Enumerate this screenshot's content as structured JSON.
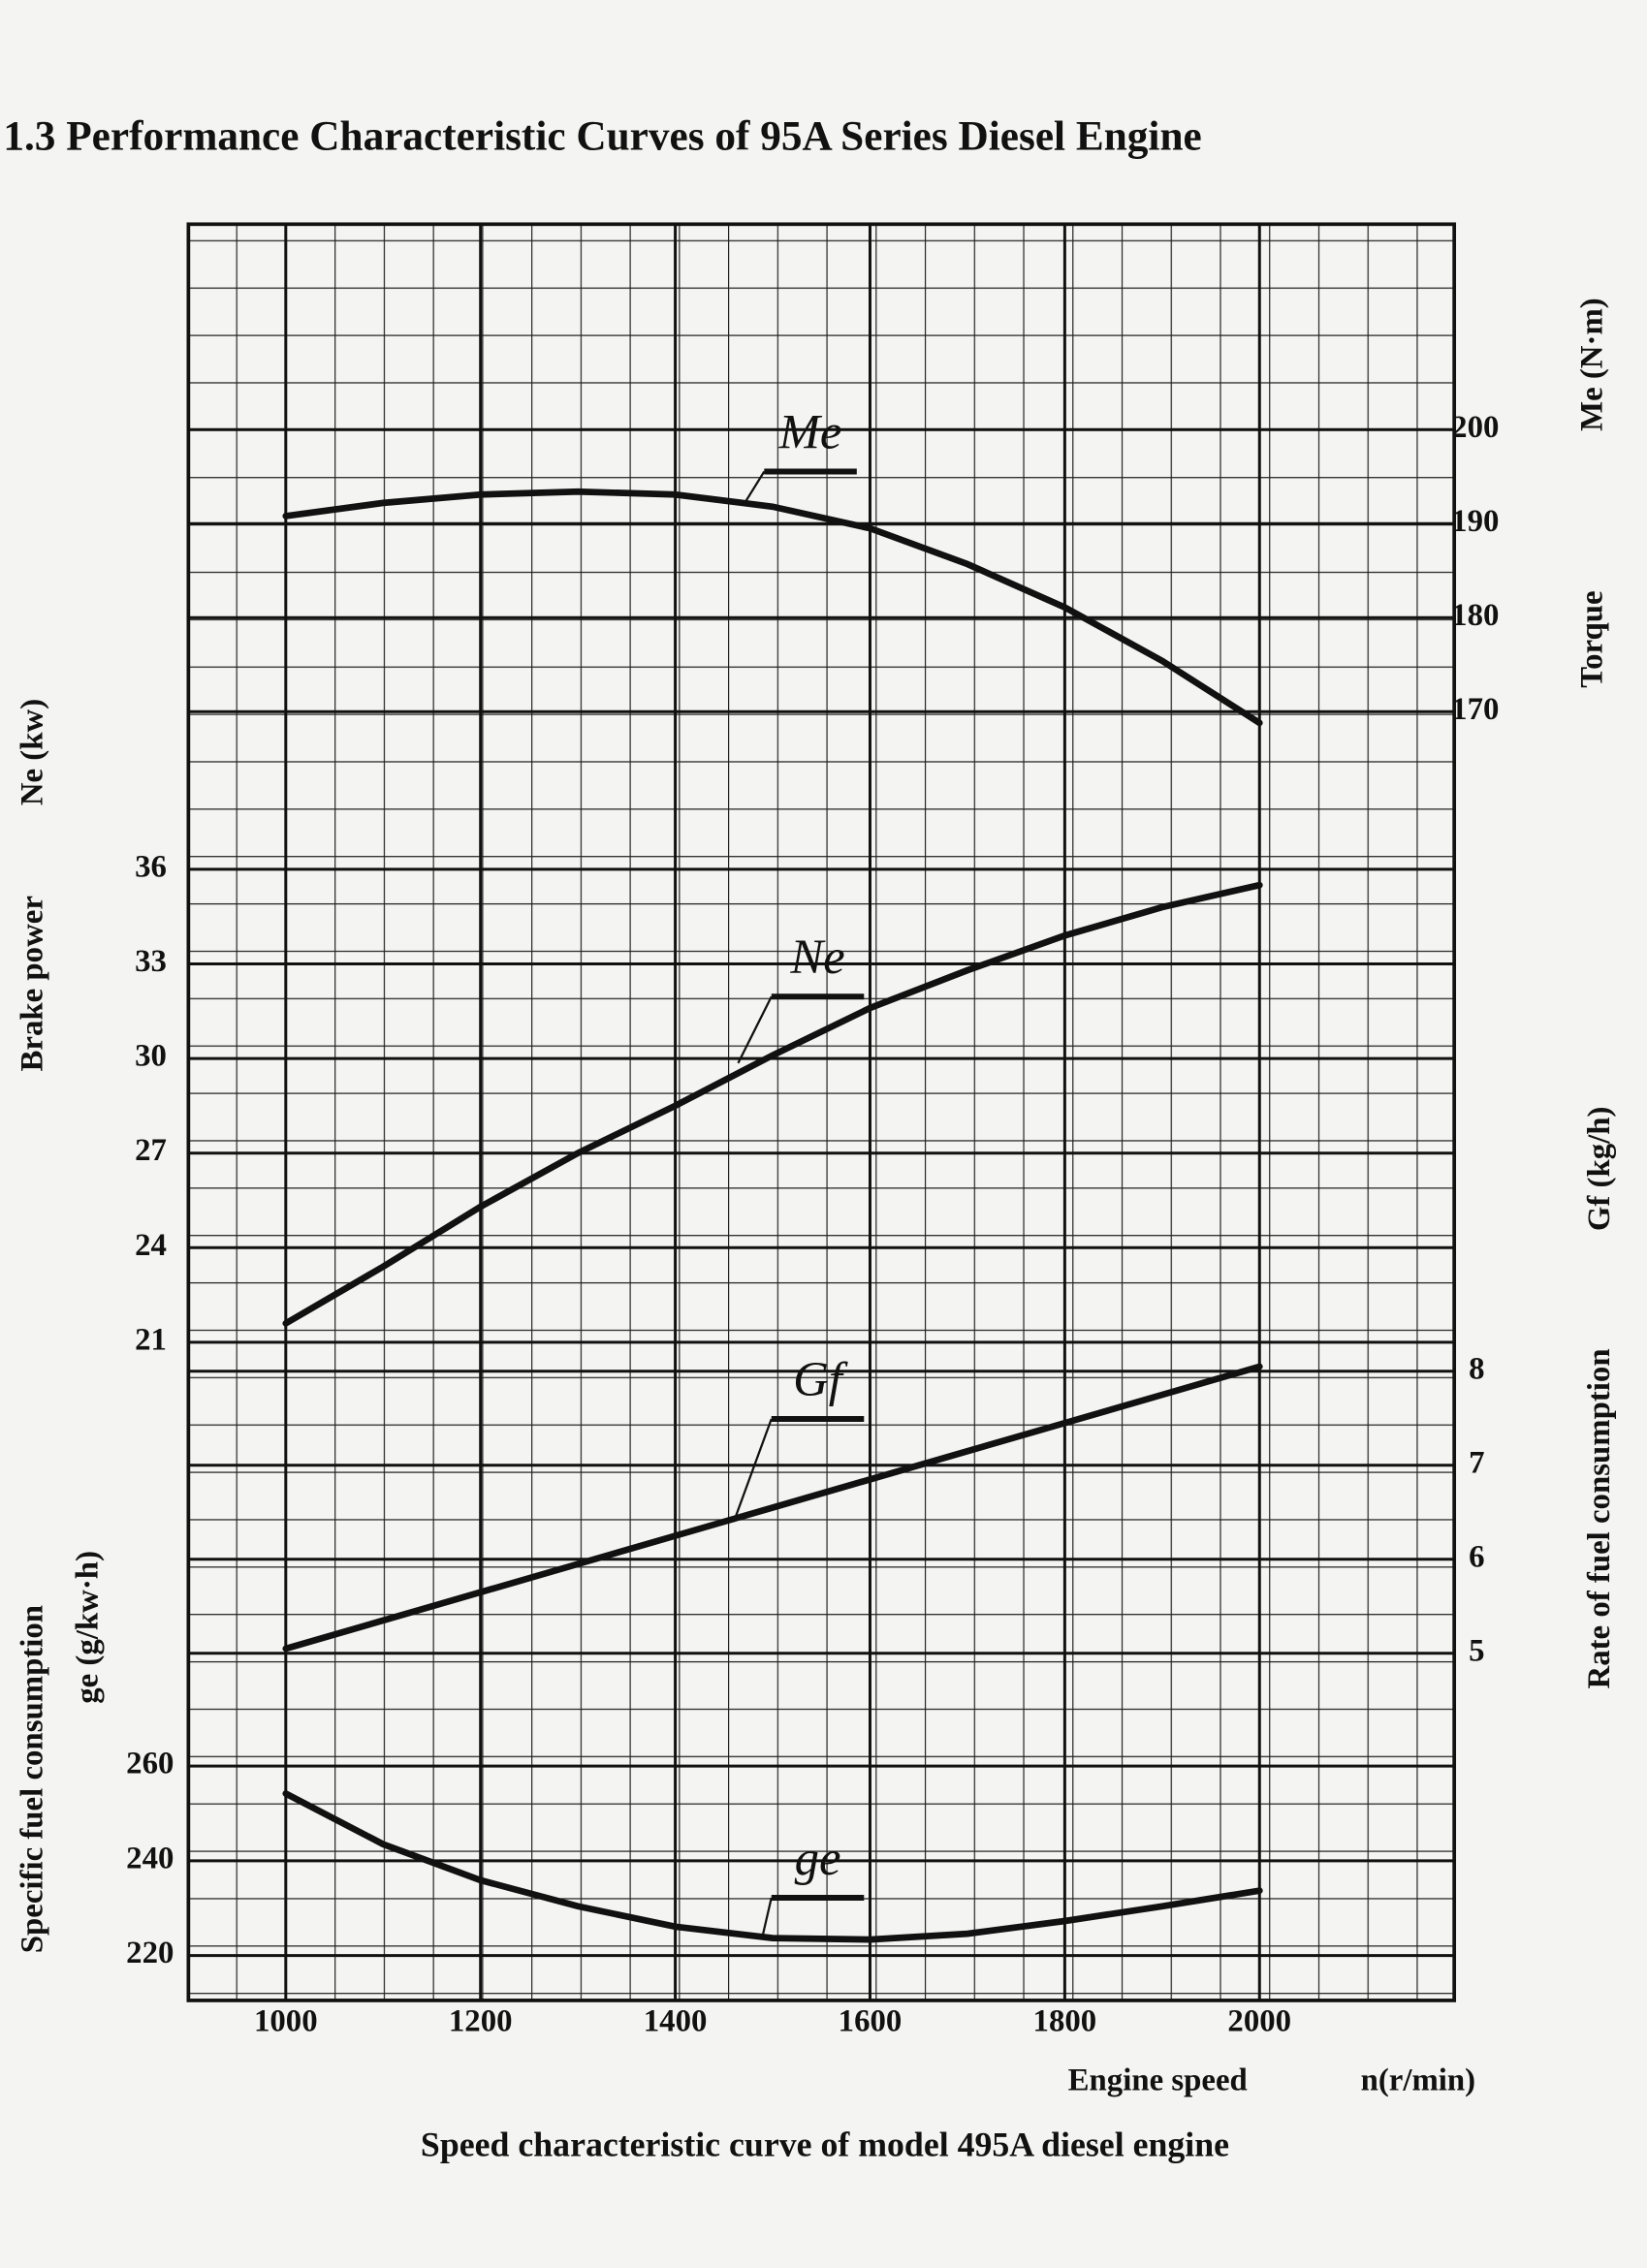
{
  "chart_data": [
    {
      "type": "line",
      "title": "1.3 Performance Characteristic Curves of 95A Series Diesel Engine",
      "caption": "Speed characteristic curve of model 495A diesel engine",
      "xlabel": "Engine speed",
      "xunit": "n(r/min)",
      "ylabel": "Torque",
      "yunit": "Me (N·m)",
      "yaxis": "right",
      "x": [
        1000,
        1100,
        1200,
        1300,
        1400,
        1500,
        1600,
        1700,
        1800,
        1900,
        2000
      ],
      "xlim": [
        900,
        2200
      ],
      "xticks": [
        1000,
        1200,
        1400,
        1600,
        1800,
        2000
      ],
      "ylim": [
        165,
        205
      ],
      "yticks": [
        170,
        180,
        190,
        200
      ],
      "series": [
        {
          "name": "Me",
          "color": "#111111",
          "values": [
            190.8,
            192.2,
            193.1,
            193.4,
            193.1,
            191.8,
            189.5,
            185.7,
            181.1,
            175.4,
            168.8
          ]
        }
      ]
    },
    {
      "type": "line",
      "ylabel": "Brake power",
      "yunit": "Ne (kw)",
      "yaxis": "left",
      "x": [
        1000,
        1100,
        1200,
        1300,
        1400,
        1500,
        1600,
        1700,
        1800,
        1900,
        2000
      ],
      "xlim": [
        900,
        2200
      ],
      "ylim": [
        21,
        36
      ],
      "yticks": [
        21,
        24,
        27,
        30,
        33,
        36
      ],
      "series": [
        {
          "name": "Ne",
          "color": "#111111",
          "values": [
            21.6,
            23.4,
            25.3,
            27.0,
            28.5,
            30.1,
            31.6,
            32.8,
            33.9,
            34.8,
            35.5
          ]
        }
      ]
    },
    {
      "type": "line",
      "ylabel": "Rate of fuel consumption",
      "yunit": "Gf (kg/h)",
      "yaxis": "right",
      "x": [
        1000,
        1100,
        1200,
        1300,
        1400,
        1500,
        1600,
        1700,
        1800,
        1900,
        2000
      ],
      "xlim": [
        900,
        2200
      ],
      "ylim": [
        5,
        8
      ],
      "yticks": [
        5,
        6,
        7,
        8
      ],
      "series": [
        {
          "name": "Gf",
          "color": "#111111",
          "values": [
            5.05,
            5.35,
            5.65,
            5.95,
            6.25,
            6.55,
            6.85,
            7.15,
            7.45,
            7.75,
            8.05
          ]
        }
      ]
    },
    {
      "type": "line",
      "ylabel": "Specific fuel consumption",
      "yunit": "ge (g/kw·h)",
      "yaxis": "left",
      "x": [
        1000,
        1100,
        1200,
        1300,
        1400,
        1500,
        1600,
        1700,
        1800,
        1900,
        2000
      ],
      "xlim": [
        900,
        2200
      ],
      "ylim": [
        220,
        260
      ],
      "yticks": [
        220,
        240,
        260
      ],
      "series": [
        {
          "name": "ge",
          "color": "#111111",
          "values": [
            254.2,
            243.5,
            235.9,
            230.4,
            226.1,
            223.7,
            223.4,
            224.6,
            227.3,
            230.4,
            233.7
          ]
        }
      ]
    }
  ]
}
